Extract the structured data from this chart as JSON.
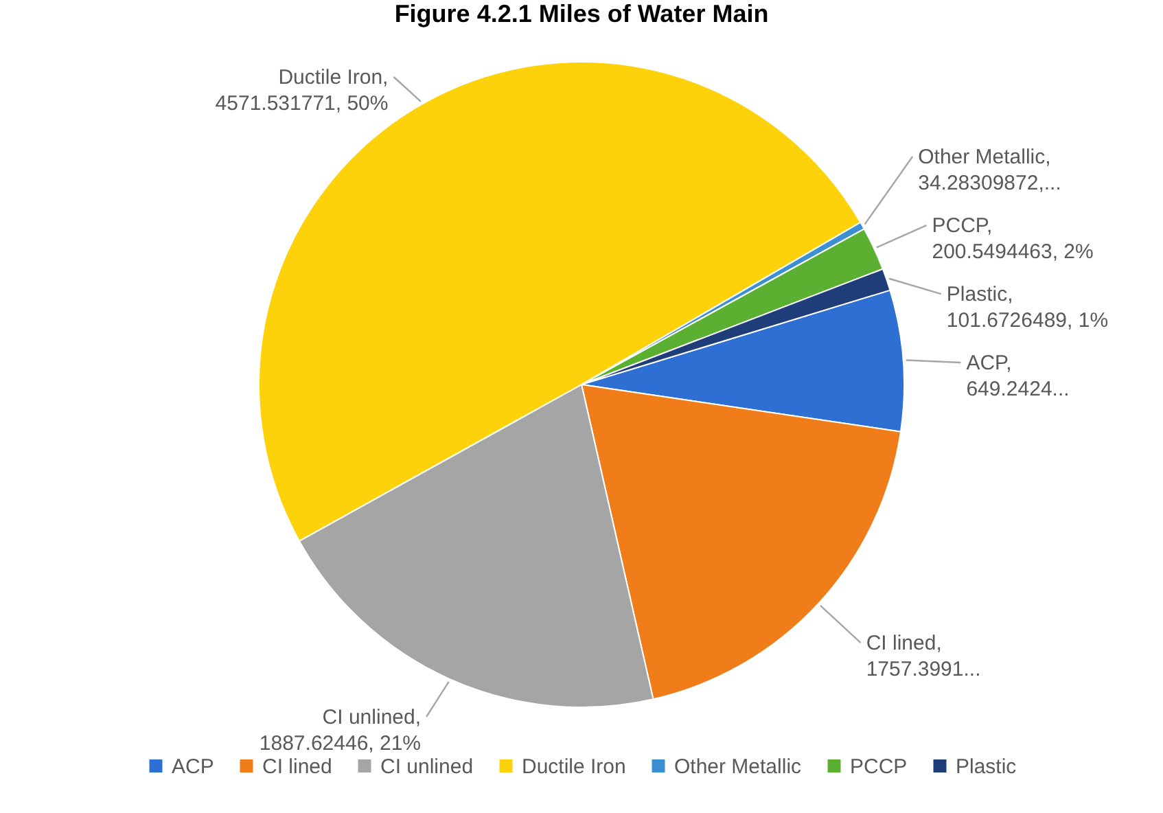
{
  "chart_data": {
    "type": "pie",
    "title": "Figure 4.2.1 Miles of Water Main",
    "categories": [
      "ACP",
      "CI lined",
      "CI unlined",
      "Ductile Iron",
      "Other Metallic",
      "PCCP",
      "Plastic"
    ],
    "values": [
      649.2424,
      1757.3991,
      1887.62446,
      4571.531771,
      34.28309872,
      200.5494463,
      101.6726489
    ],
    "colors": [
      "#2e6fd3",
      "#f07c1a",
      "#a5a5a5",
      "#fdd20a",
      "#3c8fd1",
      "#5cb031",
      "#1f3d78"
    ],
    "value_labels": [
      "ACP, 649.2424...",
      "CI lined, 1757.3991...",
      "CI unlined, 1887.62446, 21%",
      "Ductile Iron, 4571.531771, 50%",
      "Other Metallic, 34.28309872,...",
      "PCCP, 200.5494463, 2%",
      "Plastic, 101.6726489, 1%"
    ],
    "legend": "bottom"
  }
}
